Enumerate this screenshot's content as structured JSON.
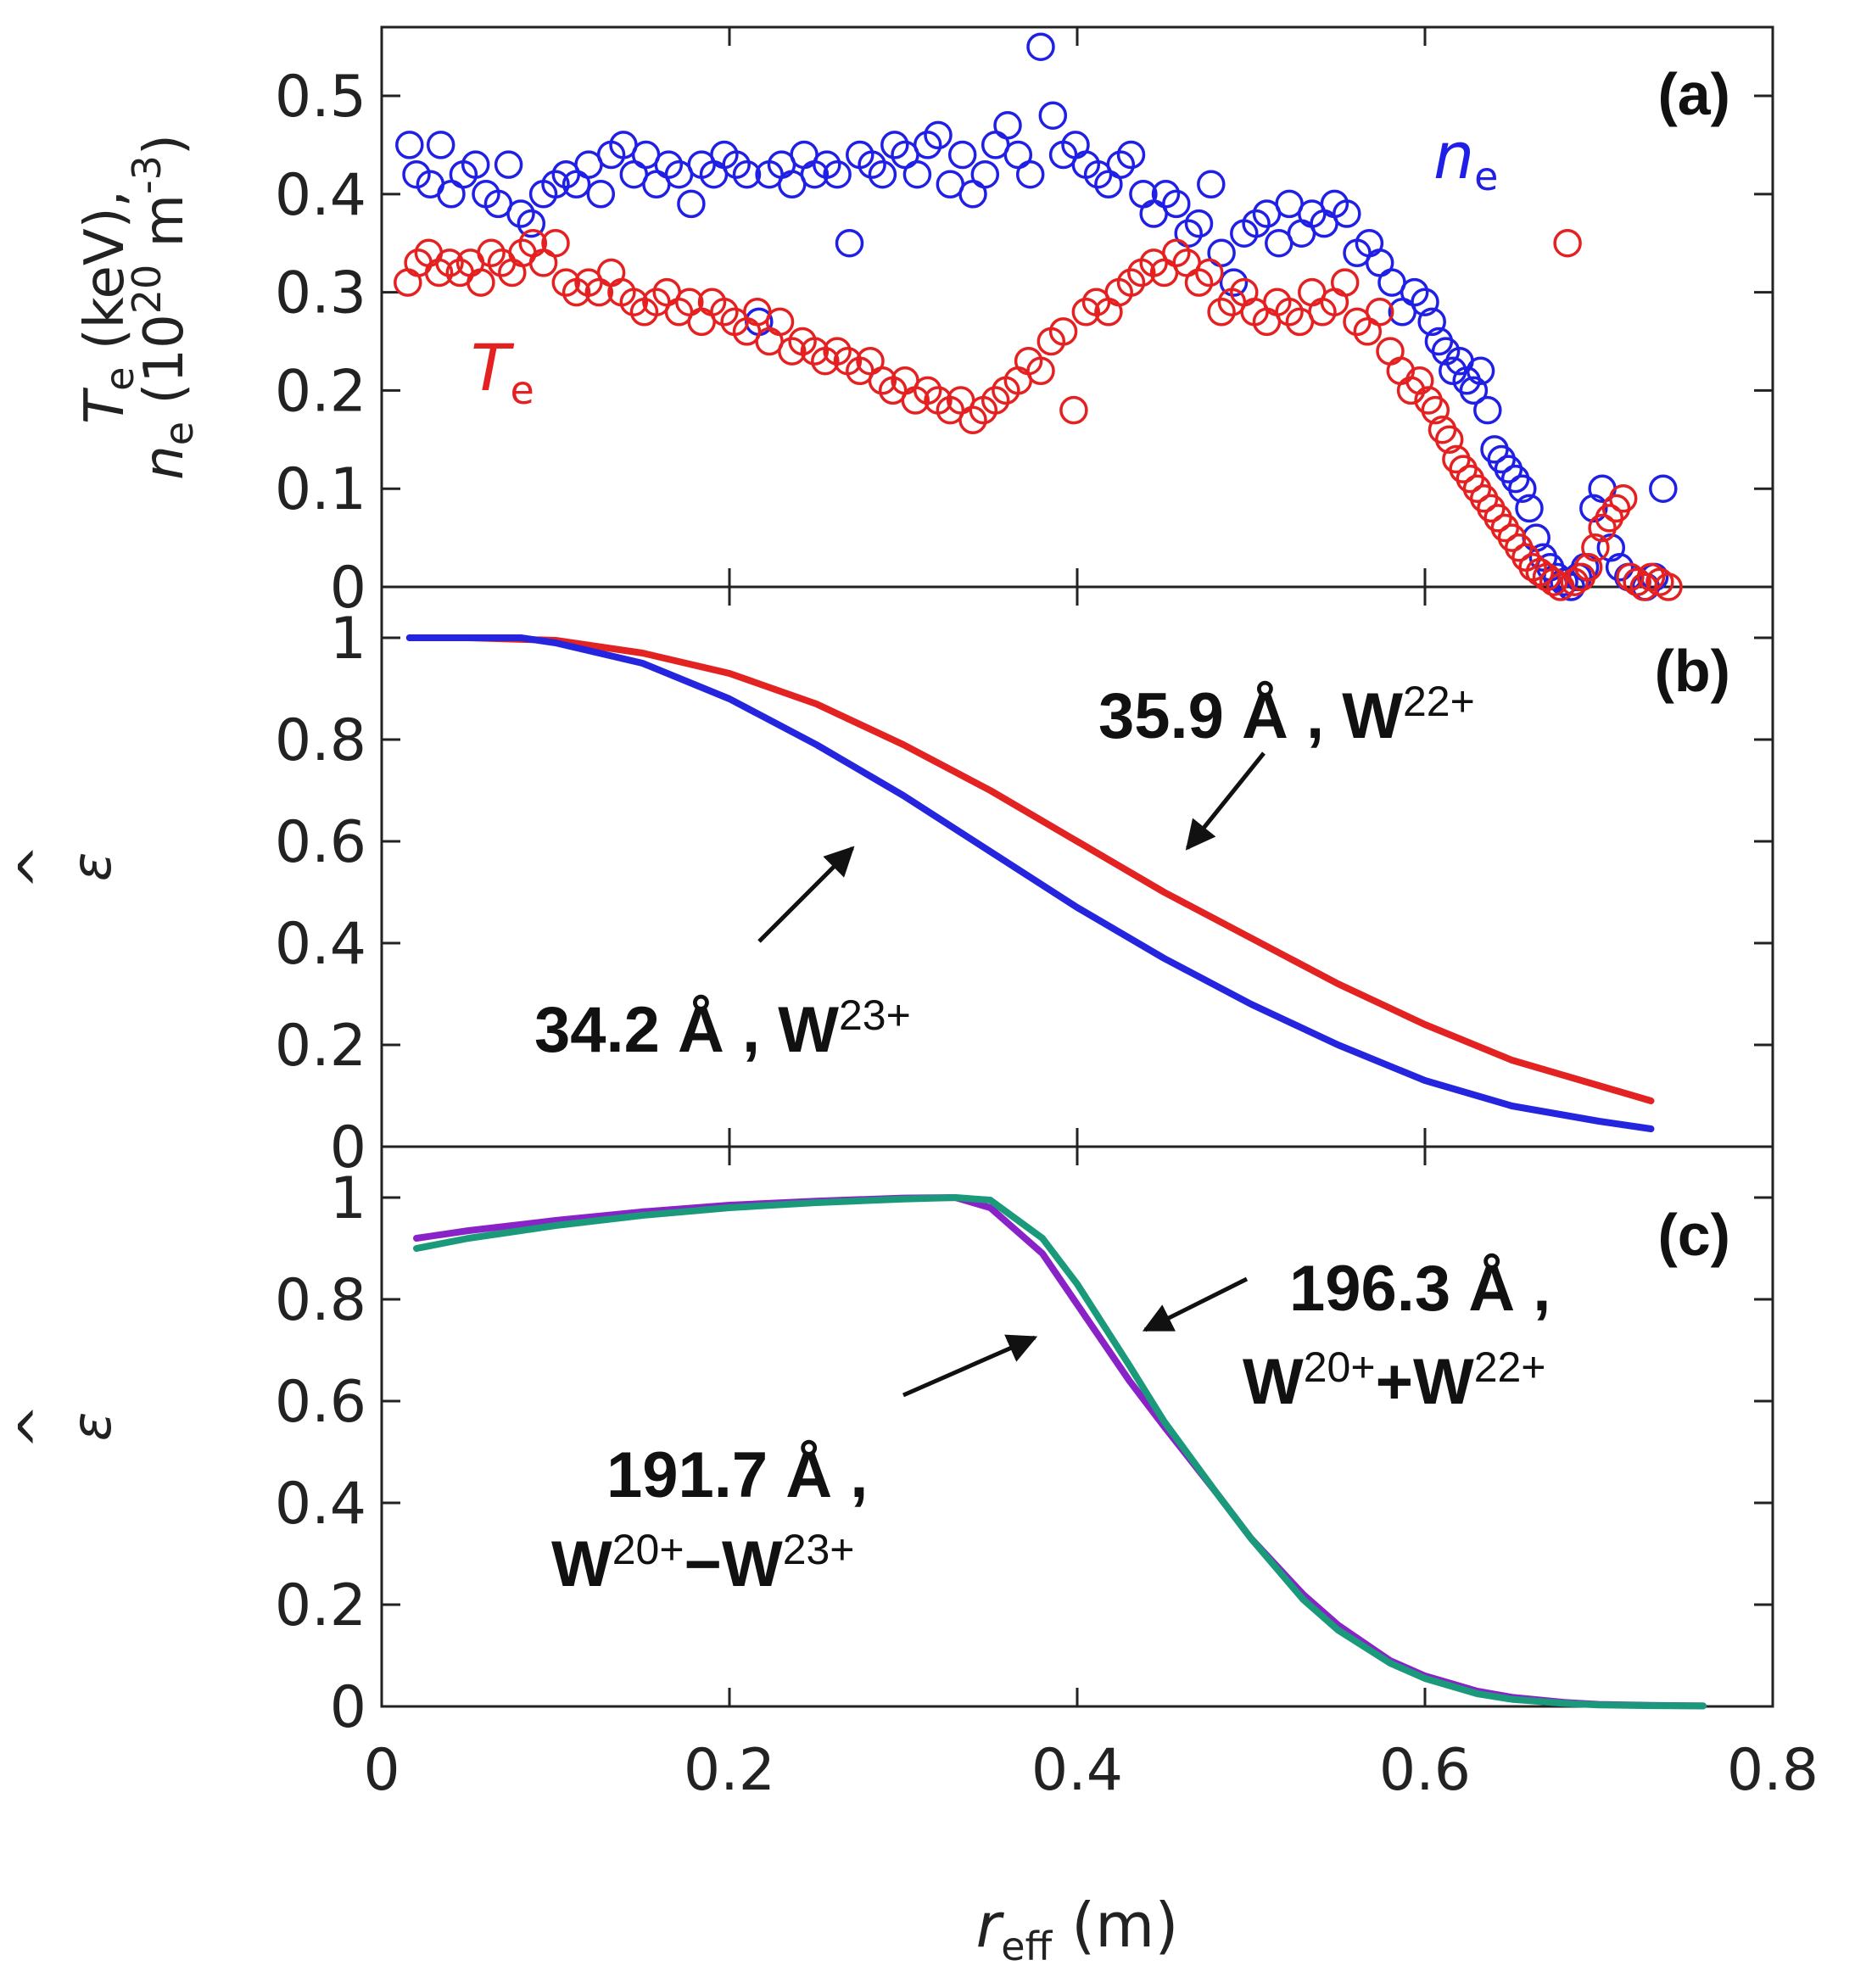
{
  "colors": {
    "ne": "#1f1fe6",
    "te": "#e52020",
    "b_w22": "#e32222",
    "b_w23": "#2525e0",
    "c_191": "#8a23c7",
    "c_196": "#1a9a7a",
    "axis": "#222222"
  },
  "xaxis": {
    "label_main": "r",
    "label_sub": "eff",
    "label_unit": " (m)",
    "ticks": [
      "0",
      "0.2",
      "0.4",
      "0.6",
      "0.8"
    ]
  },
  "chart_data": [
    {
      "id": "a",
      "type": "scatter",
      "panel_label": "(a)",
      "ylabel_line1": "T",
      "ylabel_line1_sub": "e",
      "ylabel_line1_rest": " (keV),",
      "ylabel_line2": "n",
      "ylabel_line2_sub": "e",
      "ylabel_line2_rest": " (10",
      "ylabel_line2_sup": "20",
      "ylabel_line2_unit": " m",
      "ylabel_line2_unitsup": "-3",
      "ylabel_line2_close": ")",
      "xlim": [
        0,
        0.8
      ],
      "ylim": [
        0,
        0.57
      ],
      "yticks": [
        "0",
        "0.1",
        "0.2",
        "0.3",
        "0.4",
        "0.5"
      ],
      "series": [
        {
          "name": "n_e",
          "label_main": "n",
          "label_sub": "e",
          "color": "#1f1fe6",
          "x": [
            0.016,
            0.02,
            0.028,
            0.034,
            0.04,
            0.047,
            0.054,
            0.06,
            0.067,
            0.073,
            0.08,
            0.086,
            0.093,
            0.1,
            0.106,
            0.112,
            0.119,
            0.126,
            0.132,
            0.139,
            0.145,
            0.152,
            0.158,
            0.165,
            0.171,
            0.178,
            0.184,
            0.191,
            0.197,
            0.204,
            0.21,
            0.217,
            0.223,
            0.23,
            0.236,
            0.243,
            0.249,
            0.256,
            0.262,
            0.269,
            0.275,
            0.282,
            0.288,
            0.295,
            0.301,
            0.308,
            0.314,
            0.32,
            0.327,
            0.334,
            0.34,
            0.347,
            0.353,
            0.36,
            0.366,
            0.373,
            0.379,
            0.386,
            0.392,
            0.399,
            0.405,
            0.412,
            0.418,
            0.425,
            0.431,
            0.438,
            0.444,
            0.451,
            0.457,
            0.464,
            0.47,
            0.477,
            0.483,
            0.49,
            0.496,
            0.503,
            0.509,
            0.516,
            0.522,
            0.529,
            0.535,
            0.542,
            0.548,
            0.555,
            0.561,
            0.568,
            0.574,
            0.581,
            0.587,
            0.594,
            0.6,
            0.604,
            0.608,
            0.612,
            0.616,
            0.62,
            0.624,
            0.628,
            0.632,
            0.636,
            0.64,
            0.644,
            0.648,
            0.652,
            0.656,
            0.66,
            0.664,
            0.668,
            0.672,
            0.676,
            0.68,
            0.684,
            0.688,
            0.692,
            0.697,
            0.702,
            0.707,
            0.712,
            0.717,
            0.722,
            0.727,
            0.732,
            0.737
          ],
          "y": [
            0.45,
            0.42,
            0.41,
            0.45,
            0.4,
            0.42,
            0.43,
            0.4,
            0.39,
            0.43,
            0.38,
            0.37,
            0.4,
            0.41,
            0.42,
            0.41,
            0.43,
            0.4,
            0.44,
            0.45,
            0.42,
            0.44,
            0.41,
            0.43,
            0.42,
            0.39,
            0.43,
            0.42,
            0.44,
            0.43,
            0.42,
            0.27,
            0.42,
            0.43,
            0.41,
            0.44,
            0.42,
            0.43,
            0.42,
            0.35,
            0.44,
            0.43,
            0.42,
            0.45,
            0.44,
            0.42,
            0.45,
            0.46,
            0.41,
            0.44,
            0.4,
            0.42,
            0.45,
            0.47,
            0.44,
            0.42,
            0.55,
            0.48,
            0.44,
            0.45,
            0.43,
            0.42,
            0.41,
            0.43,
            0.44,
            0.4,
            0.38,
            0.4,
            0.39,
            0.36,
            0.37,
            0.41,
            0.34,
            0.31,
            0.36,
            0.37,
            0.38,
            0.35,
            0.39,
            0.36,
            0.38,
            0.37,
            0.39,
            0.38,
            0.34,
            0.35,
            0.33,
            0.31,
            0.28,
            0.3,
            0.29,
            0.27,
            0.25,
            0.24,
            0.22,
            0.23,
            0.21,
            0.2,
            0.22,
            0.18,
            0.14,
            0.13,
            0.12,
            0.11,
            0.1,
            0.08,
            0.05,
            0.03,
            0.02,
            0.01,
            0.005,
            0.0,
            0.01,
            0.02,
            0.08,
            0.1,
            0.04,
            0.02,
            0.01,
            0.005,
            0.0,
            0.01,
            0.1
          ]
        },
        {
          "name": "T_e",
          "label_main": "T",
          "label_sub": "e",
          "color": "#e52020",
          "x": [
            0.015,
            0.021,
            0.027,
            0.033,
            0.039,
            0.045,
            0.051,
            0.057,
            0.063,
            0.069,
            0.075,
            0.081,
            0.087,
            0.093,
            0.1,
            0.106,
            0.112,
            0.119,
            0.125,
            0.132,
            0.138,
            0.145,
            0.151,
            0.158,
            0.164,
            0.171,
            0.177,
            0.184,
            0.19,
            0.197,
            0.203,
            0.21,
            0.216,
            0.223,
            0.229,
            0.236,
            0.242,
            0.249,
            0.255,
            0.262,
            0.268,
            0.275,
            0.281,
            0.288,
            0.294,
            0.301,
            0.307,
            0.314,
            0.32,
            0.327,
            0.333,
            0.34,
            0.346,
            0.353,
            0.359,
            0.366,
            0.372,
            0.379,
            0.385,
            0.392,
            0.398,
            0.405,
            0.411,
            0.418,
            0.424,
            0.431,
            0.437,
            0.444,
            0.45,
            0.457,
            0.463,
            0.47,
            0.476,
            0.483,
            0.489,
            0.496,
            0.502,
            0.509,
            0.515,
            0.522,
            0.528,
            0.535,
            0.541,
            0.548,
            0.554,
            0.561,
            0.567,
            0.574,
            0.58,
            0.586,
            0.592,
            0.597,
            0.602,
            0.606,
            0.61,
            0.614,
            0.618,
            0.622,
            0.626,
            0.63,
            0.634,
            0.638,
            0.642,
            0.646,
            0.65,
            0.654,
            0.658,
            0.662,
            0.666,
            0.67,
            0.674,
            0.678,
            0.682,
            0.686,
            0.69,
            0.694,
            0.698,
            0.702,
            0.706,
            0.71,
            0.714,
            0.718,
            0.722,
            0.726,
            0.73,
            0.735,
            0.74
          ],
          "y": [
            0.31,
            0.33,
            0.34,
            0.32,
            0.33,
            0.32,
            0.33,
            0.31,
            0.34,
            0.33,
            0.32,
            0.34,
            0.35,
            0.33,
            0.35,
            0.31,
            0.3,
            0.31,
            0.3,
            0.32,
            0.3,
            0.29,
            0.28,
            0.29,
            0.3,
            0.28,
            0.29,
            0.27,
            0.29,
            0.28,
            0.27,
            0.26,
            0.28,
            0.25,
            0.27,
            0.24,
            0.25,
            0.24,
            0.23,
            0.24,
            0.23,
            0.22,
            0.23,
            0.21,
            0.2,
            0.21,
            0.19,
            0.2,
            0.19,
            0.18,
            0.19,
            0.17,
            0.18,
            0.19,
            0.2,
            0.21,
            0.23,
            0.22,
            0.25,
            0.26,
            0.18,
            0.28,
            0.29,
            0.28,
            0.3,
            0.31,
            0.32,
            0.33,
            0.32,
            0.34,
            0.33,
            0.31,
            0.32,
            0.28,
            0.29,
            0.3,
            0.28,
            0.27,
            0.29,
            0.28,
            0.27,
            0.3,
            0.28,
            0.29,
            0.31,
            0.27,
            0.26,
            0.28,
            0.24,
            0.22,
            0.2,
            0.21,
            0.19,
            0.18,
            0.16,
            0.15,
            0.13,
            0.12,
            0.11,
            0.1,
            0.09,
            0.08,
            0.07,
            0.06,
            0.05,
            0.04,
            0.03,
            0.02,
            0.015,
            0.01,
            0.005,
            0.0,
            0.35,
            0.005,
            0.01,
            0.02,
            0.04,
            0.06,
            0.07,
            0.08,
            0.09,
            0.01,
            0.005,
            0.0,
            0.01,
            0.005,
            0.0
          ]
        }
      ]
    },
    {
      "id": "b",
      "type": "line",
      "panel_label": "(b)",
      "ylabel": "ε",
      "ylabel_hat": "^",
      "xlim": [
        0,
        0.8
      ],
      "ylim": [
        0,
        1.1
      ],
      "yticks": [
        "0",
        "0.2",
        "0.4",
        "0.6",
        "0.8",
        "1"
      ],
      "series": [
        {
          "name": "35.9 Å, W22+",
          "color": "#e32222",
          "x": [
            0.016,
            0.05,
            0.1,
            0.15,
            0.2,
            0.25,
            0.3,
            0.35,
            0.4,
            0.45,
            0.5,
            0.55,
            0.6,
            0.65,
            0.7,
            0.73
          ],
          "y": [
            1.0,
            1.0,
            0.995,
            0.97,
            0.93,
            0.87,
            0.79,
            0.7,
            0.6,
            0.5,
            0.41,
            0.32,
            0.24,
            0.17,
            0.12,
            0.09
          ]
        },
        {
          "name": "34.2 Å, W23+",
          "color": "#2525e0",
          "x": [
            0.016,
            0.05,
            0.08,
            0.1,
            0.15,
            0.2,
            0.25,
            0.3,
            0.35,
            0.4,
            0.45,
            0.5,
            0.55,
            0.6,
            0.65,
            0.7,
            0.73
          ],
          "y": [
            1.0,
            1.0,
            1.0,
            0.99,
            0.95,
            0.88,
            0.79,
            0.69,
            0.58,
            0.47,
            0.37,
            0.28,
            0.2,
            0.13,
            0.08,
            0.05,
            0.035
          ]
        }
      ],
      "annotations": [
        {
          "main": "35.9 Å , W",
          "sup": "22+"
        },
        {
          "main": "34.2 Å , W",
          "sup": "23+"
        }
      ]
    },
    {
      "id": "c",
      "type": "line",
      "panel_label": "(c)",
      "ylabel": "ε",
      "ylabel_hat": "^",
      "xlim": [
        0,
        0.8
      ],
      "ylim": [
        0,
        1.1
      ],
      "yticks": [
        "0",
        "0.2",
        "0.4",
        "0.6",
        "0.8",
        "1"
      ],
      "series": [
        {
          "name": "191.7 Å, W20+ − W23+",
          "color": "#8a23c7",
          "x": [
            0.02,
            0.05,
            0.1,
            0.15,
            0.2,
            0.25,
            0.3,
            0.33,
            0.35,
            0.38,
            0.4,
            0.43,
            0.45,
            0.48,
            0.5,
            0.53,
            0.55,
            0.58,
            0.6,
            0.63,
            0.65,
            0.68,
            0.7,
            0.73,
            0.76
          ],
          "y": [
            0.92,
            0.935,
            0.955,
            0.972,
            0.985,
            0.993,
            0.999,
            1.0,
            0.98,
            0.89,
            0.79,
            0.64,
            0.55,
            0.42,
            0.33,
            0.22,
            0.16,
            0.09,
            0.06,
            0.03,
            0.018,
            0.008,
            0.004,
            0.002,
            0.001
          ]
        },
        {
          "name": "196.3 Å, W20+ + W22+",
          "color": "#1a9a7a",
          "x": [
            0.02,
            0.05,
            0.1,
            0.15,
            0.2,
            0.25,
            0.3,
            0.33,
            0.35,
            0.38,
            0.4,
            0.43,
            0.45,
            0.48,
            0.5,
            0.53,
            0.55,
            0.58,
            0.6,
            0.63,
            0.65,
            0.68,
            0.7,
            0.73,
            0.76
          ],
          "y": [
            0.9,
            0.92,
            0.945,
            0.965,
            0.98,
            0.99,
            0.997,
            1.0,
            0.995,
            0.92,
            0.83,
            0.67,
            0.56,
            0.42,
            0.33,
            0.21,
            0.15,
            0.085,
            0.055,
            0.025,
            0.014,
            0.006,
            0.003,
            0.0015,
            0.001
          ]
        }
      ],
      "annotations": [
        {
          "main": "196.3 Å ,"
        },
        {
          "p1": "W",
          "s1": "20+",
          "op": "+",
          "p2": "W",
          "s2": "22+"
        },
        {
          "main": "191.7 Å ,"
        },
        {
          "p1": "W",
          "s1": "20+",
          "op": "−",
          "p2": "W",
          "s2": "23+"
        }
      ]
    }
  ]
}
